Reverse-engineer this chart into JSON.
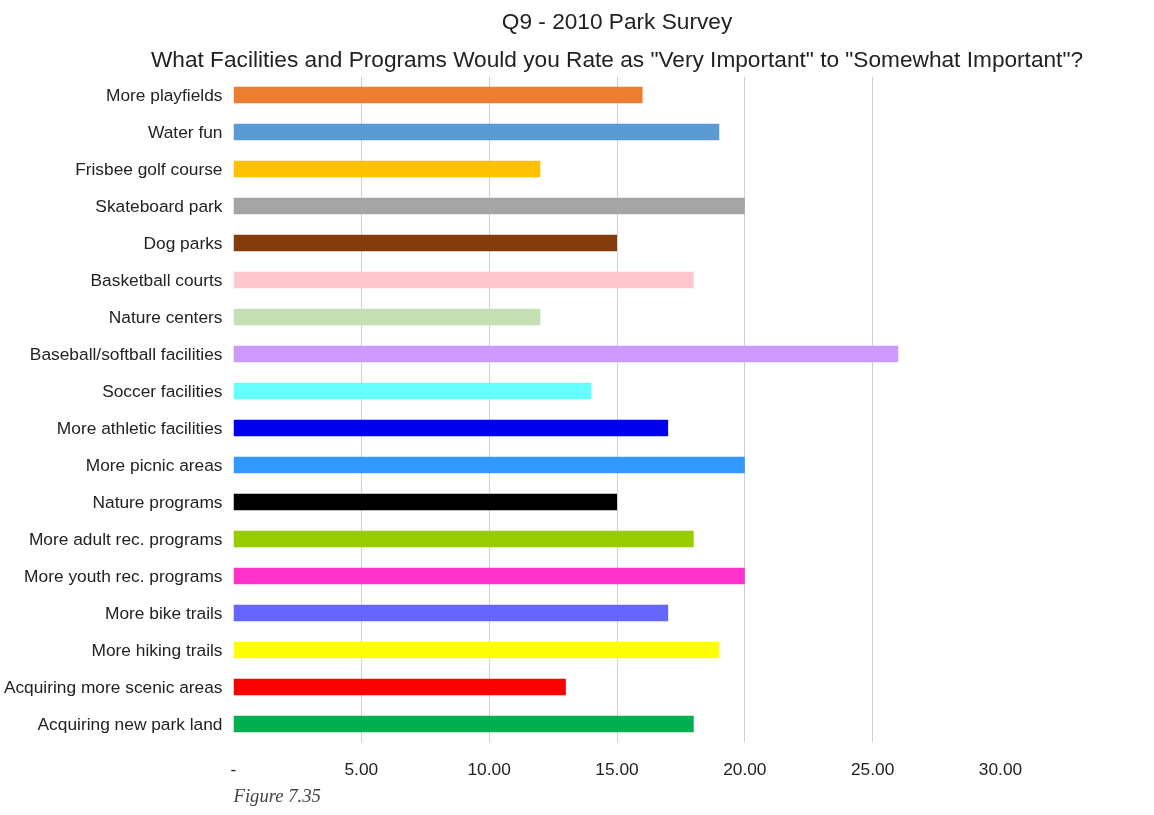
{
  "chart_data": {
    "type": "bar",
    "orientation": "horizontal",
    "title": "Q9 - 2010 Park Survey",
    "subtitle": "What Facilities and Programs Would you Rate as \"Very Important\" to \"Somewhat Important\"?",
    "categories": [
      "More playfields",
      "Water fun",
      "Frisbee golf course",
      "Skateboard park",
      "Dog parks",
      "Basketball courts",
      "Nature centers",
      "Baseball/softball facilities",
      "Soccer facilities",
      "More athletic facilities",
      "More picnic areas",
      "Nature programs",
      "More adult rec. programs",
      "More youth rec. programs",
      "More bike trails",
      "More hiking trails",
      "Acquiring more scenic areas",
      "Acquiring new park land"
    ],
    "values": [
      16,
      19,
      12,
      20,
      15,
      18,
      12,
      26,
      14,
      17,
      20,
      15,
      18,
      20,
      17,
      19,
      13,
      18
    ],
    "colors": [
      "#ed7d31",
      "#5b9bd5",
      "#ffc000",
      "#a5a5a5",
      "#843c0c",
      "#ffc7ce",
      "#c5e0b4",
      "#cc99ff",
      "#66ffff",
      "#0000ee",
      "#3399ff",
      "#000000",
      "#99cc00",
      "#ff33cc",
      "#6666ff",
      "#ffff00",
      "#ff0000",
      "#00b050"
    ],
    "xlim": [
      0,
      30
    ],
    "xticks": [
      {
        "value": 0,
        "label": "-"
      },
      {
        "value": 5,
        "label": "5.00"
      },
      {
        "value": 10,
        "label": "10.00"
      },
      {
        "value": 15,
        "label": "15.00"
      },
      {
        "value": 20,
        "label": "20.00"
      },
      {
        "value": 25,
        "label": "25.00"
      },
      {
        "value": 30,
        "label": "30.00"
      }
    ],
    "grid": "x",
    "annotations": [
      "Figure 7.35"
    ]
  }
}
